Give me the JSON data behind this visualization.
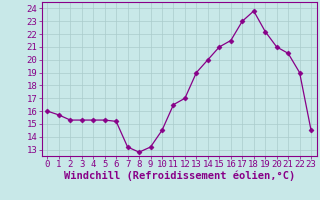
{
  "hours": [
    0,
    1,
    2,
    3,
    4,
    5,
    6,
    7,
    8,
    9,
    10,
    11,
    12,
    13,
    14,
    15,
    16,
    17,
    18,
    19,
    20,
    21,
    22,
    23
  ],
  "values": [
    16.0,
    15.7,
    15.3,
    15.3,
    15.3,
    15.3,
    15.2,
    13.2,
    12.8,
    13.2,
    14.5,
    16.5,
    17.0,
    19.0,
    20.0,
    21.0,
    21.5,
    23.0,
    23.8,
    22.2,
    21.0,
    20.5,
    19.0,
    14.5
  ],
  "line_color": "#880088",
  "marker": "D",
  "marker_size": 2.5,
  "bg_color": "#c8e8e8",
  "grid_color": "#aacccc",
  "xlabel": "Windchill (Refroidissement éolien,°C)",
  "xlim": [
    -0.5,
    23.5
  ],
  "ylim": [
    12.5,
    24.5
  ],
  "yticks": [
    13,
    14,
    15,
    16,
    17,
    18,
    19,
    20,
    21,
    22,
    23,
    24
  ],
  "xticks": [
    0,
    1,
    2,
    3,
    4,
    5,
    6,
    7,
    8,
    9,
    10,
    11,
    12,
    13,
    14,
    15,
    16,
    17,
    18,
    19,
    20,
    21,
    22,
    23
  ],
  "tick_fontsize": 6.5,
  "xlabel_fontsize": 7.5
}
